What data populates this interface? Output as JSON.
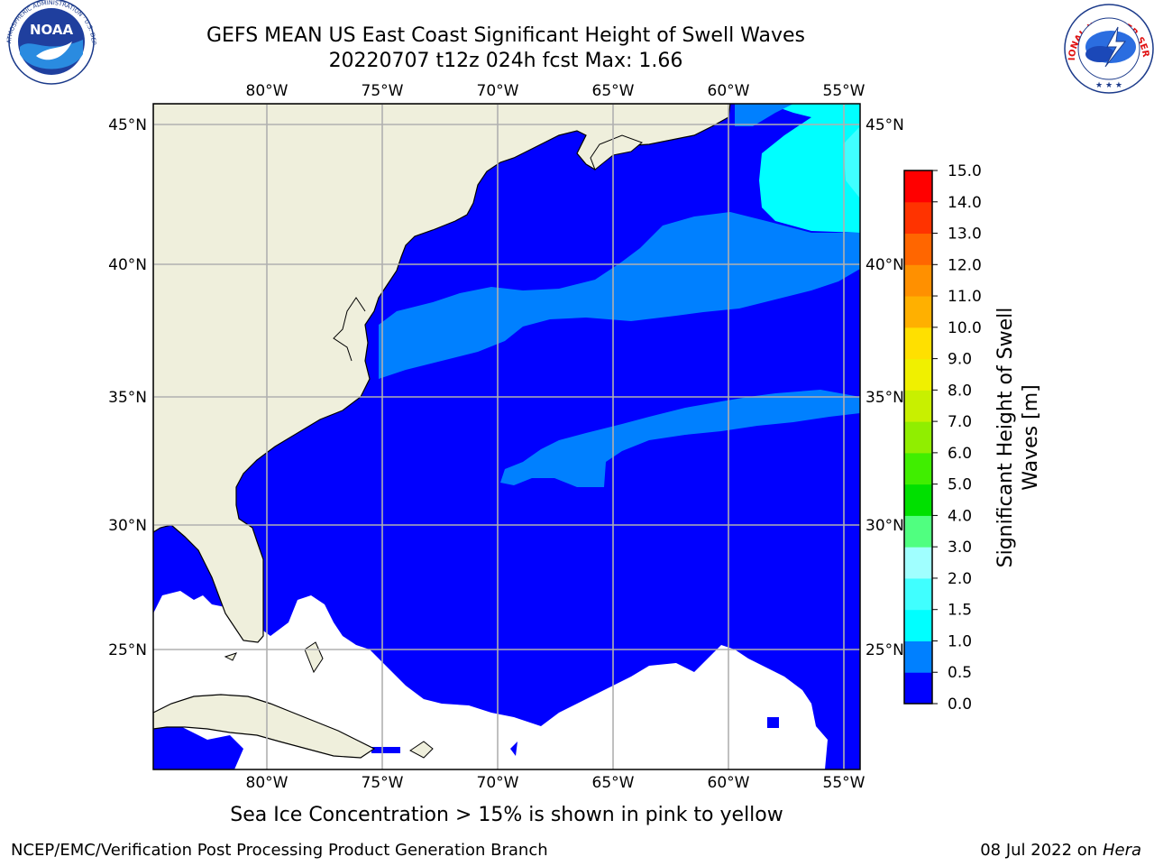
{
  "title": {
    "line1": "GEFS MEAN US East Coast Significant Height of Swell Waves",
    "line2": "20220707 t12z 024h fcst   Max: 1.66"
  },
  "logos": {
    "noaa_text": "NOAA",
    "noaa_ring": "NATIONAL OCEANIC AND ATMOSPHERIC ADMINISTRATION · U.S. DEPARTMENT OF COMMERCE",
    "nws_ring": "NATIONAL WEATHER SERVICE"
  },
  "map": {
    "lon_labels": [
      "80°W",
      "75°W",
      "70°W",
      "65°W",
      "60°W",
      "55°W"
    ],
    "lat_labels": [
      "45°N",
      "40°N",
      "35°N",
      "30°N",
      "25°N"
    ]
  },
  "colorbar": {
    "label_line1": "Significant Height of Swell",
    "label_line2": "Waves [m]",
    "ticks": [
      "0.0",
      "0.5",
      "1.0",
      "1.5",
      "2.0",
      "3.0",
      "4.0",
      "5.0",
      "6.0",
      "7.0",
      "8.0",
      "9.0",
      "10.0",
      "11.0",
      "12.0",
      "13.0",
      "14.0",
      "15.0"
    ],
    "colors": [
      "#0000ff",
      "#0080ff",
      "#00ffff",
      "#40ffff",
      "#a0ffff",
      "#50ff80",
      "#00e000",
      "#40ee00",
      "#90ee00",
      "#c8f000",
      "#f0f000",
      "#ffe000",
      "#ffb000",
      "#ff9000",
      "#ff6600",
      "#ff3300",
      "#ff0000"
    ]
  },
  "colors": {
    "land": "#efefdc",
    "ocean_low": "#0000ff",
    "ocean_mid": "#0080ff",
    "ocean_high": "#00ffff",
    "no_data": "#ffffff",
    "grid": "#b0b0b0"
  },
  "footer": {
    "note": "Sea Ice Concentration > 15% is shown in pink to yellow",
    "left": "NCEP/EMC/Verification Post Processing Product Generation Branch",
    "right_date": "08 Jul 2022 on",
    "right_host": "Hera"
  }
}
